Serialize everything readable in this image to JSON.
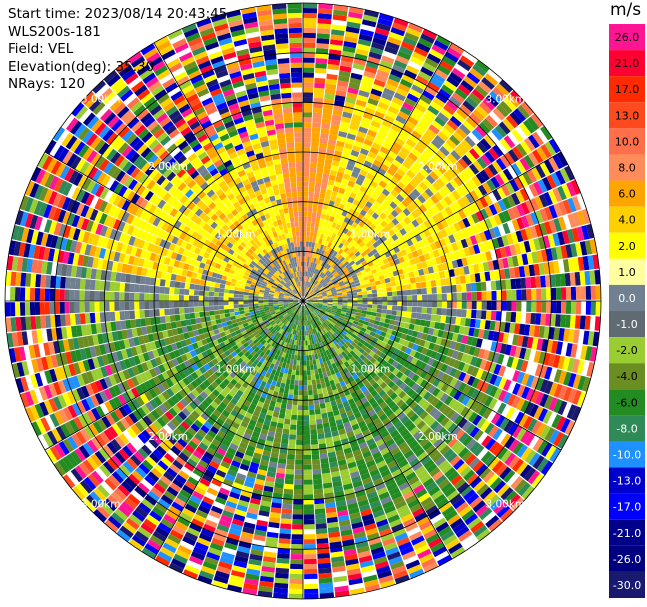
{
  "info": {
    "start_time": "Start time: 2023/08/14 20:43:45",
    "instrument": "WLS200s-181",
    "field": "Field: VEL",
    "elevation": "Elevation(deg): 35.30",
    "nrays": "NRays: 120"
  },
  "chart_data": {
    "type": "heatmap",
    "projection": "polar-ppi",
    "title": "",
    "colorbar": {
      "unit": "m/s",
      "levels": [
        {
          "label": "26.0",
          "color": "#ff1493"
        },
        {
          "label": "21.0",
          "color": "#ff0033"
        },
        {
          "label": "17.0",
          "color": "#ff2a00"
        },
        {
          "label": "13.0",
          "color": "#ff4a1e"
        },
        {
          "label": "10.0",
          "color": "#ff6f4a"
        },
        {
          "label": "8.0",
          "color": "#ff8c5a"
        },
        {
          "label": "6.0",
          "color": "#ffa500"
        },
        {
          "label": "4.0",
          "color": "#ffd000"
        },
        {
          "label": "2.0",
          "color": "#ffff00"
        },
        {
          "label": "1.0",
          "color": "#ffffa0"
        },
        {
          "label": "0.0",
          "color": "#708090"
        },
        {
          "label": "-1.0",
          "color": "#5f6b70"
        },
        {
          "label": "-2.0",
          "color": "#9acd32"
        },
        {
          "label": "-4.0",
          "color": "#6b8e23"
        },
        {
          "label": "-6.0",
          "color": "#228b22"
        },
        {
          "label": "-8.0",
          "color": "#2e8b57"
        },
        {
          "label": "-10.0",
          "color": "#1e90ff"
        },
        {
          "label": "-13.0",
          "color": "#0000cd"
        },
        {
          "label": "-17.0",
          "color": "#0000ff"
        },
        {
          "label": "-21.0",
          "color": "#00008b"
        },
        {
          "label": "-26.0",
          "color": "#000080"
        },
        {
          "label": "-30.0",
          "color": "#191970"
        }
      ]
    },
    "range_rings_km": [
      0.5,
      1.0,
      1.5,
      2.0,
      2.5,
      3.0
    ],
    "range_ring_labels": [
      "1.00km",
      "2.00km",
      "3.00km",
      "2.00km",
      "1.00km"
    ],
    "max_range_km": 3.0,
    "spokes_deg": [
      0,
      30,
      60,
      90,
      120,
      150,
      180,
      210,
      240,
      270,
      300,
      330
    ]
  }
}
